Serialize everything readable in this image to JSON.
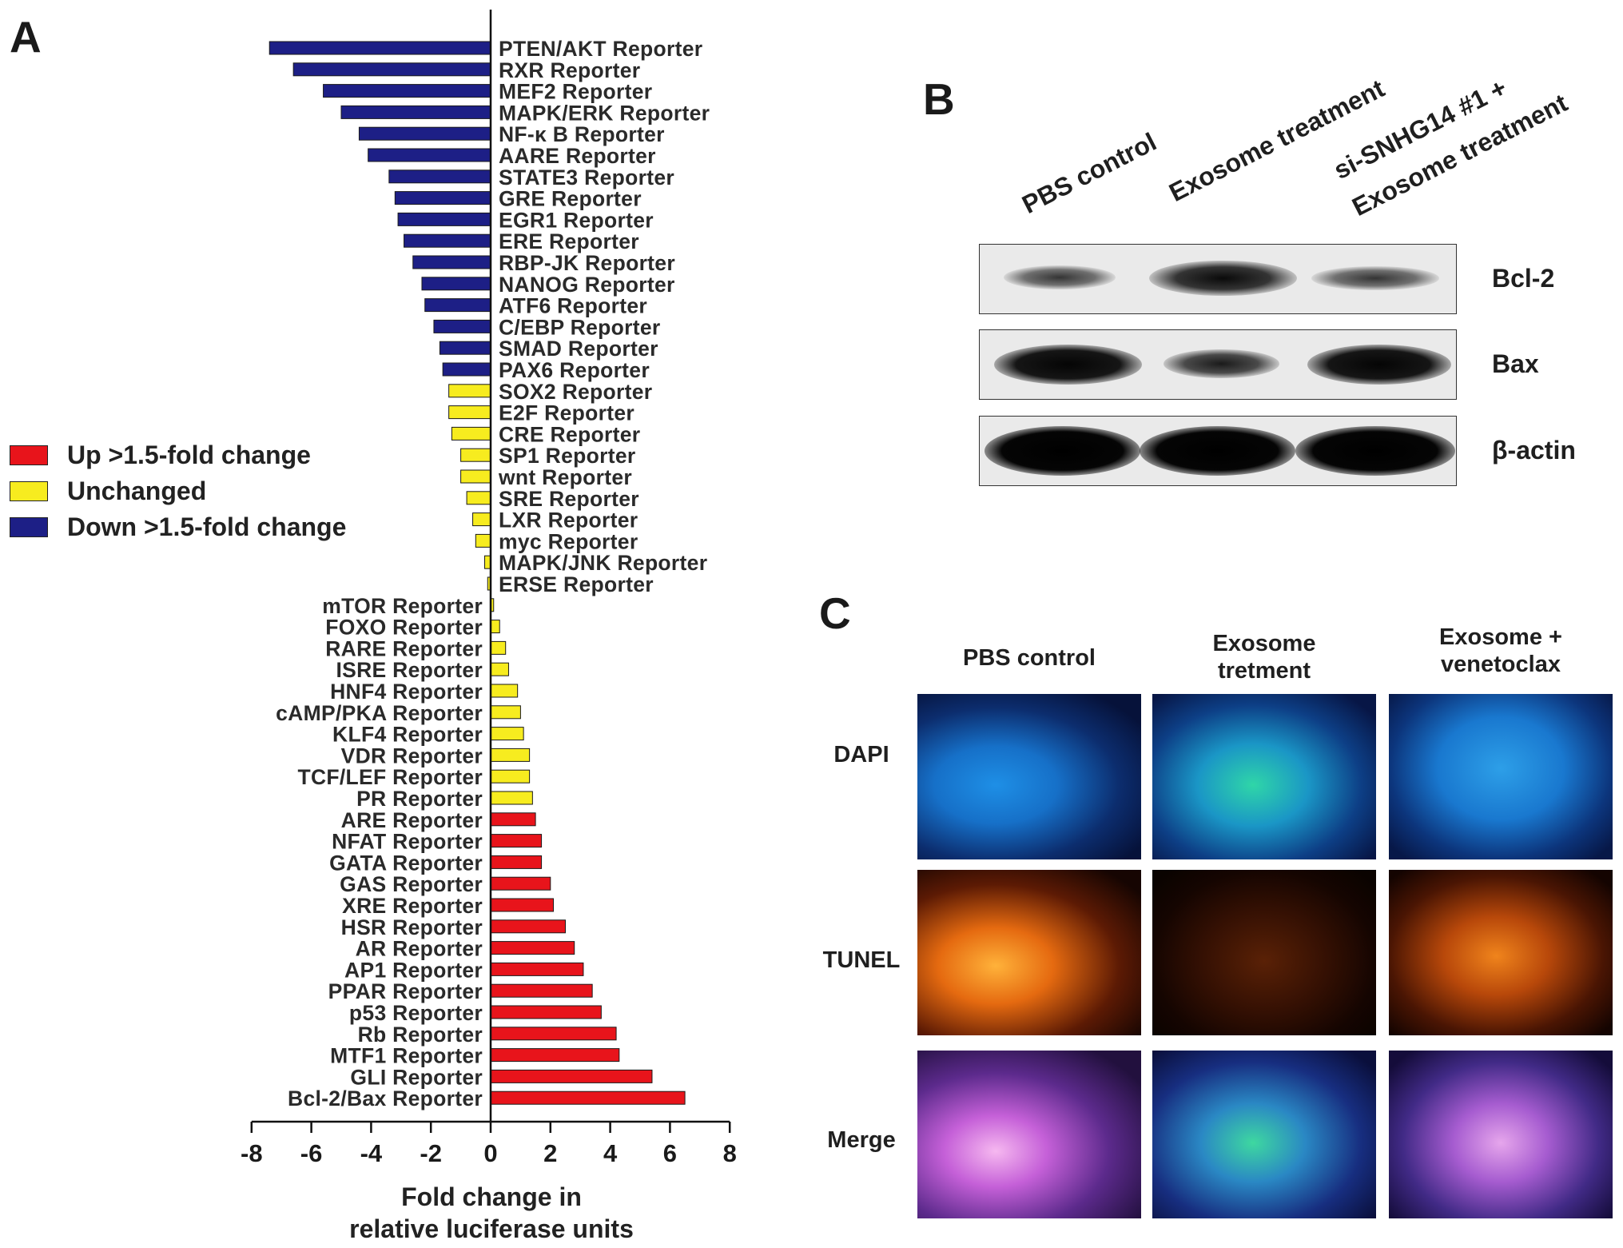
{
  "panels": {
    "a": "A",
    "b": "B",
    "c": "C"
  },
  "legend": [
    {
      "label": "Up >1.5-fold change",
      "color": "#e8141b"
    },
    {
      "label": "Unchanged",
      "color": "#f7ec1f"
    },
    {
      "label": "Down >1.5-fold change",
      "color": "#1d1f86"
    }
  ],
  "chart_data": {
    "type": "bar",
    "orientation": "horizontal",
    "xlabel_line1": "Fold change in",
    "xlabel_line2": "relative luciferase units",
    "xlim": [
      -8,
      8
    ],
    "xticks": [
      -8,
      -6,
      -4,
      -2,
      0,
      2,
      4,
      6,
      8
    ],
    "categories": [
      "PTEN/AKT Reporter",
      "RXR  Reporter",
      "MEF2 Reporter",
      "MAPK/ERK Reporter",
      "NF-κ B Reporter",
      "AARE Reporter",
      "STATE3 Reporter",
      "GRE Reporter",
      "EGR1 Reporter",
      "ERE Reporter",
      "RBP-JK Reporter",
      "NANOG Reporter",
      "ATF6 Reporter",
      "C/EBP Reporter",
      "SMAD Reporter",
      "PAX6 Reporter",
      "SOX2 Reporter",
      "E2F Reporter",
      "CRE Reporter",
      "SP1 Reporter",
      "wnt Reporter",
      "SRE Reporter",
      "LXR Reporter",
      "myc Reporter",
      "MAPK/JNK Reporter",
      "ERSE Reporter",
      "mTOR Reporter",
      "FOXO Reporter",
      "RARE Reporter",
      "ISRE Reporter",
      "HNF4 Reporter",
      "cAMP/PKA Reporter",
      "KLF4 Reporter",
      "VDR Reporter",
      "TCF/LEF Reporter",
      "PR Reporter",
      "ARE Reporter",
      "NFAT Reporter",
      "GATA Reporter",
      "GAS Reporter",
      "XRE Reporter",
      "HSR Reporter",
      "AR Reporter",
      "AP1 Reporter",
      "PPAR Reporter",
      "p53 Reporter",
      "Rb Reporter",
      "MTF1 Reporter",
      "GLI Reporter",
      "Bcl-2/Bax Reporter"
    ],
    "values": [
      -7.4,
      -6.6,
      -5.6,
      -5.0,
      -4.4,
      -4.1,
      -3.4,
      -3.2,
      -3.1,
      -2.9,
      -2.6,
      -2.3,
      -2.2,
      -1.9,
      -1.7,
      -1.6,
      -1.4,
      -1.4,
      -1.3,
      -1.0,
      -1.0,
      -0.8,
      -0.6,
      -0.5,
      -0.2,
      -0.1,
      0.1,
      0.3,
      0.5,
      0.6,
      0.9,
      1.0,
      1.1,
      1.3,
      1.3,
      1.4,
      1.5,
      1.7,
      1.7,
      2.0,
      2.1,
      2.5,
      2.8,
      3.1,
      3.4,
      3.7,
      4.2,
      4.3,
      5.4,
      6.5
    ],
    "groups": [
      "down",
      "down",
      "down",
      "down",
      "down",
      "down",
      "down",
      "down",
      "down",
      "down",
      "down",
      "down",
      "down",
      "down",
      "down",
      "down",
      "unchanged",
      "unchanged",
      "unchanged",
      "unchanged",
      "unchanged",
      "unchanged",
      "unchanged",
      "unchanged",
      "unchanged",
      "unchanged",
      "unchanged",
      "unchanged",
      "unchanged",
      "unchanged",
      "unchanged",
      "unchanged",
      "unchanged",
      "unchanged",
      "unchanged",
      "unchanged",
      "up",
      "up",
      "up",
      "up",
      "up",
      "up",
      "up",
      "up",
      "up",
      "up",
      "up",
      "up",
      "up",
      "up"
    ],
    "group_colors": {
      "down": "#1d1f86",
      "unchanged": "#f7ec1f",
      "up": "#e8141b"
    }
  },
  "western_blot": {
    "lanes": [
      "PBS control",
      "Exosome treatment",
      "si-SNHG14 #1 +",
      "Exosome treatment"
    ],
    "rows": [
      {
        "label": "Bcl-2",
        "intensity": [
          0.55,
          0.85,
          0.55
        ]
      },
      {
        "label": "Bax",
        "intensity": [
          0.95,
          0.55,
          0.9
        ]
      },
      {
        "label": "β-actin",
        "intensity": [
          1.0,
          1.0,
          1.0
        ]
      }
    ]
  },
  "microscopy": {
    "columns": [
      {
        "line1": "PBS control",
        "line2": ""
      },
      {
        "line1": "Exosome",
        "line2": "tretment"
      },
      {
        "line1": "Exosome +",
        "line2": "venetoclax"
      }
    ],
    "rows": [
      "DAPI",
      "TUNEL",
      "Merge"
    ]
  }
}
